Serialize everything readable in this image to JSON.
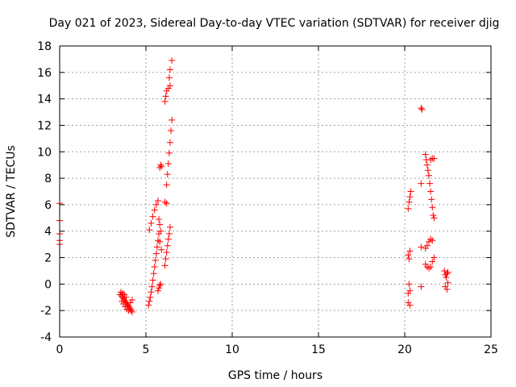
{
  "chart_data": {
    "type": "scatter",
    "title": "Day 021 of 2023, Sidereal Day-to-day VTEC variation (SDTVAR) for receiver djig",
    "xlabel": "GPS time / hours",
    "ylabel": "SDTVAR / TECUs",
    "xlim": [
      0,
      25
    ],
    "ylim": [
      -4,
      18
    ],
    "xticks": [
      0,
      5,
      10,
      15,
      20,
      25
    ],
    "yticks": [
      -4,
      -2,
      0,
      2,
      4,
      6,
      8,
      10,
      12,
      14,
      16,
      18
    ],
    "grid": true,
    "marker": "+",
    "marker_color": "#ff0000",
    "series": [
      {
        "name": "SDTVAR",
        "points": [
          [
            0.0,
            6.1
          ],
          [
            0.0,
            4.8
          ],
          [
            0.0,
            3.8
          ],
          [
            0.0,
            3.3
          ],
          [
            0.0,
            3.0
          ],
          [
            3.5,
            -0.8
          ],
          [
            3.55,
            -0.6
          ],
          [
            3.6,
            -0.9
          ],
          [
            3.65,
            -1.0
          ],
          [
            3.7,
            -1.1
          ],
          [
            3.75,
            -1.2
          ],
          [
            3.8,
            -1.3
          ],
          [
            3.85,
            -1.4
          ],
          [
            3.9,
            -1.5
          ],
          [
            3.95,
            -1.6
          ],
          [
            4.0,
            -1.7
          ],
          [
            4.05,
            -1.8
          ],
          [
            4.1,
            -1.9
          ],
          [
            4.15,
            -2.0
          ],
          [
            4.2,
            -2.1
          ],
          [
            3.6,
            -1.3
          ],
          [
            3.7,
            -1.5
          ],
          [
            3.8,
            -1.7
          ],
          [
            3.9,
            -1.9
          ],
          [
            4.0,
            -2.0
          ],
          [
            4.1,
            -1.4
          ],
          [
            4.2,
            -1.2
          ],
          [
            3.65,
            -0.7
          ],
          [
            3.75,
            -0.8
          ],
          [
            3.85,
            -1.0
          ],
          [
            5.15,
            -1.6
          ],
          [
            5.2,
            -1.3
          ],
          [
            5.25,
            -1.0
          ],
          [
            5.3,
            -0.6
          ],
          [
            5.35,
            -0.2
          ],
          [
            5.4,
            0.3
          ],
          [
            5.45,
            0.8
          ],
          [
            5.5,
            1.3
          ],
          [
            5.55,
            1.8
          ],
          [
            5.6,
            2.3
          ],
          [
            5.65,
            2.8
          ],
          [
            5.7,
            3.3
          ],
          [
            5.75,
            3.8
          ],
          [
            5.2,
            4.1
          ],
          [
            5.3,
            4.6
          ],
          [
            5.4,
            5.1
          ],
          [
            5.5,
            5.6
          ],
          [
            5.6,
            6.0
          ],
          [
            5.7,
            6.3
          ],
          [
            5.75,
            4.9
          ],
          [
            5.8,
            4.5
          ],
          [
            5.85,
            4.0
          ],
          [
            5.8,
            3.2
          ],
          [
            5.9,
            2.6
          ],
          [
            5.8,
            8.8
          ],
          [
            5.85,
            9.0
          ],
          [
            5.9,
            8.9
          ],
          [
            5.75,
            -0.3
          ],
          [
            5.8,
            -0.1
          ],
          [
            5.85,
            0.0
          ],
          [
            5.7,
            -0.5
          ],
          [
            6.1,
            6.2
          ],
          [
            6.2,
            6.1
          ],
          [
            6.1,
            1.4
          ],
          [
            6.15,
            1.9
          ],
          [
            6.2,
            2.4
          ],
          [
            6.25,
            2.9
          ],
          [
            6.3,
            3.4
          ],
          [
            6.35,
            3.8
          ],
          [
            6.4,
            4.3
          ],
          [
            6.2,
            7.5
          ],
          [
            6.25,
            8.3
          ],
          [
            6.3,
            9.1
          ],
          [
            6.35,
            9.9
          ],
          [
            6.4,
            10.7
          ],
          [
            6.45,
            11.6
          ],
          [
            6.5,
            12.4
          ],
          [
            6.1,
            13.8
          ],
          [
            6.15,
            14.2
          ],
          [
            6.2,
            14.6
          ],
          [
            6.3,
            14.8
          ],
          [
            6.4,
            15.0
          ],
          [
            6.35,
            15.6
          ],
          [
            6.4,
            16.2
          ],
          [
            6.5,
            16.9
          ],
          [
            20.2,
            5.7
          ],
          [
            20.25,
            6.2
          ],
          [
            20.3,
            6.6
          ],
          [
            20.35,
            7.0
          ],
          [
            20.2,
            2.2
          ],
          [
            20.3,
            2.5
          ],
          [
            20.25,
            1.9
          ],
          [
            20.2,
            -0.7
          ],
          [
            20.3,
            -0.5
          ],
          [
            20.25,
            0.0
          ],
          [
            20.2,
            -1.4
          ],
          [
            20.3,
            -1.6
          ],
          [
            20.95,
            13.3
          ],
          [
            21.0,
            13.2
          ],
          [
            20.95,
            7.6
          ],
          [
            20.95,
            2.8
          ],
          [
            20.95,
            -0.2
          ],
          [
            21.2,
            2.7
          ],
          [
            21.3,
            2.9
          ],
          [
            21.4,
            3.2
          ],
          [
            21.5,
            3.4
          ],
          [
            21.6,
            3.3
          ],
          [
            21.2,
            9.8
          ],
          [
            21.25,
            9.4
          ],
          [
            21.3,
            9.0
          ],
          [
            21.35,
            8.6
          ],
          [
            21.4,
            8.2
          ],
          [
            21.45,
            7.6
          ],
          [
            21.5,
            7.0
          ],
          [
            21.55,
            6.4
          ],
          [
            21.6,
            5.8
          ],
          [
            21.65,
            5.2
          ],
          [
            21.7,
            5.0
          ],
          [
            21.5,
            9.4
          ],
          [
            21.6,
            9.5
          ],
          [
            21.7,
            9.5
          ],
          [
            21.2,
            1.5
          ],
          [
            21.3,
            1.3
          ],
          [
            21.4,
            1.2
          ],
          [
            21.5,
            1.3
          ],
          [
            21.6,
            1.7
          ],
          [
            21.7,
            2.0
          ],
          [
            22.3,
            1.0
          ],
          [
            22.35,
            0.7
          ],
          [
            22.4,
            0.5
          ],
          [
            22.45,
            0.8
          ],
          [
            22.5,
            0.9
          ],
          [
            22.35,
            -0.2
          ],
          [
            22.45,
            -0.4
          ],
          [
            22.5,
            0.1
          ]
        ]
      }
    ]
  }
}
